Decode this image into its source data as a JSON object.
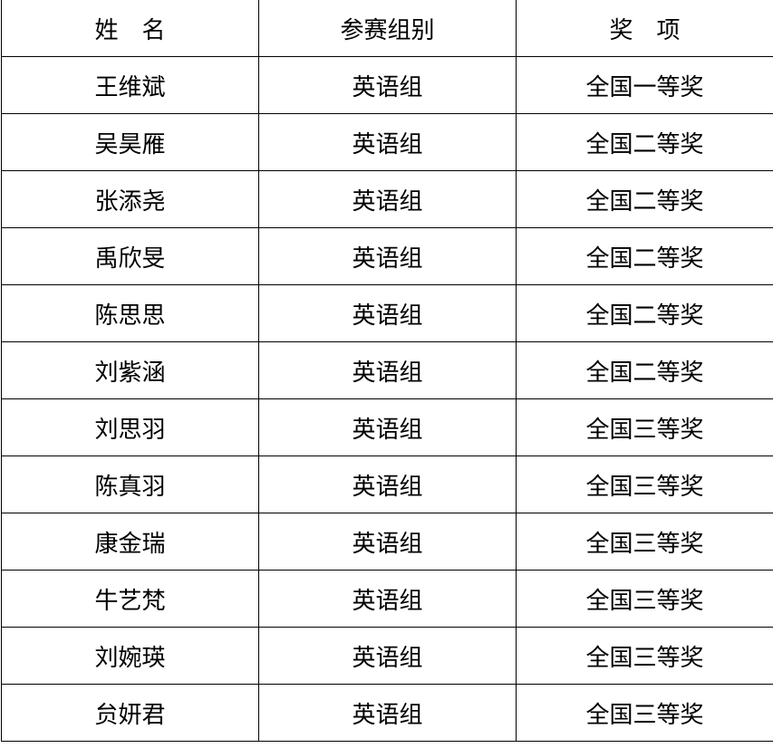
{
  "table": {
    "headers": [
      "姓　名",
      "参赛组别",
      "奖　项"
    ],
    "rows": [
      [
        "王维斌",
        "英语组",
        "全国一等奖"
      ],
      [
        "吴昊雁",
        "英语组",
        "全国二等奖"
      ],
      [
        "张添尧",
        "英语组",
        "全国二等奖"
      ],
      [
        "禹欣旻",
        "英语组",
        "全国二等奖"
      ],
      [
        "陈思思",
        "英语组",
        "全国二等奖"
      ],
      [
        "刘紫涵",
        "英语组",
        "全国二等奖"
      ],
      [
        "刘思羽",
        "英语组",
        "全国三等奖"
      ],
      [
        "陈真羽",
        "英语组",
        "全国三等奖"
      ],
      [
        "康金瑞",
        "英语组",
        "全国三等奖"
      ],
      [
        "牛艺梵",
        "英语组",
        "全国三等奖"
      ],
      [
        "刘婉瑛",
        "英语组",
        "全国三等奖"
      ],
      [
        "贠妍君",
        "英语组",
        "全国三等奖"
      ]
    ]
  }
}
